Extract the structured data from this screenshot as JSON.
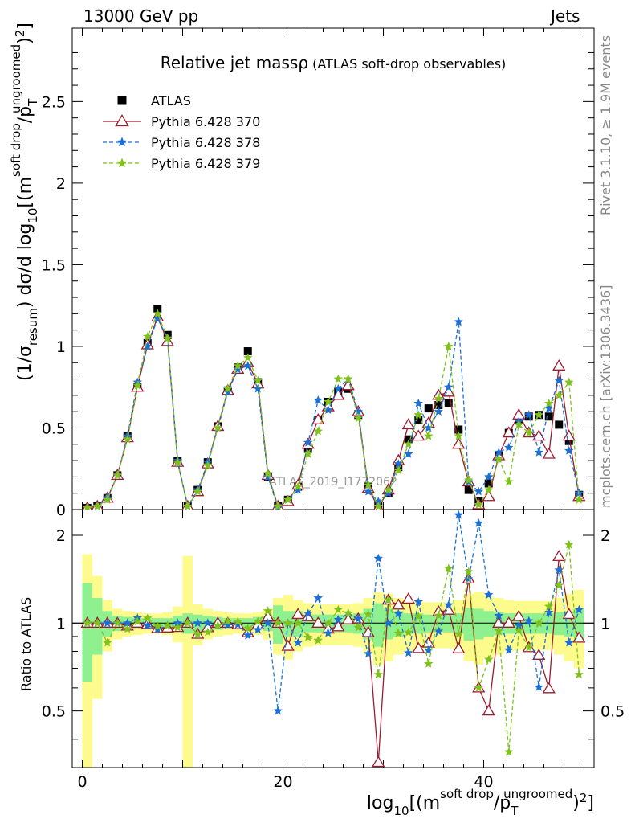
{
  "header": {
    "left": "13000 GeV pp",
    "right": "Jets"
  },
  "side_labels": {
    "rivet": "Rivet 3.1.10, ≥ 1.9M events",
    "mcplots": "mcplots.cern.ch [arXiv:1306.3436]"
  },
  "chart_data": {
    "type": "line",
    "title": "Relative jet massρ",
    "subtitle": "(ATLAS soft-drop observables)",
    "watermark": "ATLAS_2019_I1772062",
    "xlabel_parts": {
      "a": "log",
      "b": "10",
      "c": "[(m",
      "d": "soft drop",
      "e": "/p",
      "f": "T",
      "g": "ungroomed",
      "h": ")",
      "i": "2",
      "j": "]"
    },
    "ylabel_parts": {
      "a": "(1/σ",
      "b": "resum",
      "c": ") dσ/d log",
      "d": "10",
      "e": "[(m",
      "f": "soft drop",
      "g": "/p",
      "h": "T",
      "i": "ungroomed",
      "j": ")",
      "k": "2",
      "l": "]"
    },
    "ratio_ylabel": "Ratio to ATLAS",
    "xlim": [
      -1,
      51
    ],
    "ylim": [
      0,
      2.95
    ],
    "ratio_ylim": [
      0.32,
      2.45
    ],
    "x_ticks": [
      "0",
      "20",
      "40"
    ],
    "y_ticks": [
      "0",
      "0.5",
      "1",
      "1.5",
      "2",
      "2.5"
    ],
    "ratio_ticks": [
      "0.5",
      "1",
      "2"
    ],
    "x": [
      0.5,
      1.5,
      2.5,
      3.5,
      4.5,
      5.5,
      6.5,
      7.5,
      8.5,
      9.5,
      10.5,
      11.5,
      12.5,
      13.5,
      14.5,
      15.5,
      16.5,
      17.5,
      18.5,
      19.5,
      20.5,
      21.5,
      22.5,
      23.5,
      24.5,
      25.5,
      26.5,
      27.5,
      28.5,
      29.5,
      30.5,
      31.5,
      32.5,
      33.5,
      34.5,
      35.5,
      36.5,
      37.5,
      38.5,
      39.5,
      40.5,
      41.5,
      42.5,
      43.5,
      44.5,
      45.5,
      46.5,
      47.5,
      48.5,
      49.5
    ],
    "series": [
      {
        "name": "ATLAS",
        "color": "#000000",
        "marker": "square",
        "values": [
          0.01,
          0.02,
          0.07,
          0.21,
          0.45,
          0.75,
          1.02,
          1.23,
          1.07,
          0.3,
          0.02,
          0.12,
          0.29,
          0.51,
          0.73,
          0.87,
          0.97,
          0.78,
          0.2,
          0.02,
          0.06,
          0.14,
          0.38,
          0.55,
          0.66,
          0.72,
          0.74,
          0.58,
          0.14,
          0.03,
          0.1,
          0.26,
          0.43,
          0.55,
          0.62,
          0.64,
          0.65,
          0.49,
          0.12,
          0.05,
          0.16,
          0.33,
          0.47,
          0.55,
          0.57,
          0.58,
          0.57,
          0.52,
          0.42,
          0.09
        ]
      },
      {
        "name": "Pythia 6.428 370",
        "color": "#9b1b30",
        "marker": "open-triangle",
        "values": [
          0.01,
          0.02,
          0.07,
          0.21,
          0.44,
          0.75,
          1.01,
          1.18,
          1.03,
          0.29,
          0.02,
          0.11,
          0.28,
          0.51,
          0.73,
          0.86,
          0.9,
          0.77,
          0.21,
          0.02,
          0.05,
          0.15,
          0.4,
          0.55,
          0.63,
          0.7,
          0.76,
          0.6,
          0.13,
          0.01,
          0.12,
          0.3,
          0.52,
          0.45,
          0.53,
          0.7,
          0.72,
          0.4,
          0.17,
          0.03,
          0.08,
          0.33,
          0.47,
          0.58,
          0.47,
          0.45,
          0.34,
          0.88,
          0.45,
          0.08
        ]
      },
      {
        "name": "Pythia 6.428 378",
        "color": "#1b6fd6",
        "marker": "star",
        "dashed": true,
        "values": [
          0.01,
          0.02,
          0.07,
          0.21,
          0.45,
          0.78,
          1.0,
          1.17,
          1.05,
          0.3,
          0.02,
          0.12,
          0.29,
          0.5,
          0.72,
          0.86,
          0.88,
          0.74,
          0.2,
          0.01,
          0.06,
          0.12,
          0.41,
          0.67,
          0.61,
          0.74,
          0.8,
          0.6,
          0.11,
          0.05,
          0.1,
          0.28,
          0.34,
          0.65,
          0.5,
          0.6,
          0.75,
          1.15,
          0.17,
          0.11,
          0.2,
          0.35,
          0.38,
          0.54,
          0.58,
          0.35,
          0.62,
          0.79,
          0.36,
          0.1
        ]
      },
      {
        "name": "Pythia 6.428 379",
        "color": "#7ec21b",
        "marker": "star",
        "dashed": true,
        "values": [
          0.01,
          0.02,
          0.06,
          0.21,
          0.43,
          0.76,
          1.06,
          1.2,
          1.05,
          0.29,
          0.02,
          0.11,
          0.27,
          0.5,
          0.74,
          0.88,
          0.93,
          0.79,
          0.22,
          0.02,
          0.06,
          0.14,
          0.34,
          0.48,
          0.66,
          0.8,
          0.8,
          0.56,
          0.15,
          0.02,
          0.12,
          0.24,
          0.4,
          0.58,
          0.45,
          0.68,
          1.0,
          0.45,
          0.18,
          0.03,
          0.12,
          0.31,
          0.17,
          0.52,
          0.47,
          0.58,
          0.65,
          0.7,
          0.78,
          0.06
        ]
      }
    ],
    "ratio_band_inner": [
      0.37,
      0.22,
      0.1,
      0.06,
      0.05,
      0.04,
      0.04,
      0.04,
      0.04,
      0.06,
      0.08,
      0.07,
      0.06,
      0.05,
      0.04,
      0.04,
      0.04,
      0.05,
      0.06,
      0.15,
      0.1,
      0.1,
      0.07,
      0.07,
      0.07,
      0.07,
      0.07,
      0.08,
      0.12,
      0.17,
      0.12,
      0.1,
      0.08,
      0.08,
      0.07,
      0.07,
      0.07,
      0.08,
      0.13,
      0.12,
      0.1,
      0.09,
      0.08,
      0.08,
      0.08,
      0.08,
      0.08,
      0.09,
      0.1,
      0.12
    ],
    "ratio_band_outer": [
      0.72,
      0.45,
      0.2,
      0.12,
      0.1,
      0.09,
      0.08,
      0.08,
      0.09,
      0.14,
      0.7,
      0.16,
      0.12,
      0.1,
      0.09,
      0.08,
      0.08,
      0.09,
      0.12,
      0.22,
      0.25,
      0.2,
      0.17,
      0.16,
      0.16,
      0.16,
      0.16,
      0.17,
      0.22,
      0.28,
      0.26,
      0.22,
      0.2,
      0.18,
      0.18,
      0.18,
      0.18,
      0.2,
      0.26,
      0.28,
      0.24,
      0.22,
      0.2,
      0.19,
      0.19,
      0.19,
      0.19,
      0.22,
      0.26,
      0.3
    ]
  }
}
